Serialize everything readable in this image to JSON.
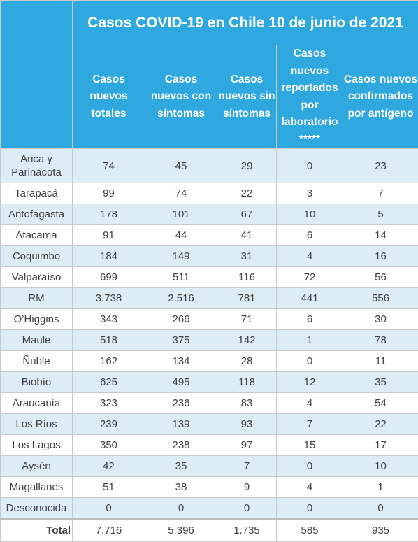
{
  "title": "Casos COVID-19 en Chile 10 de junio de 2021",
  "headers": [
    "Casos nuevos totales",
    "Casos nuevos con síntomas",
    "Casos nuevos sin síntomas",
    "Casos nuevos reportados por laboratorio *****",
    "Casos nuevos confirmados por antígeno"
  ],
  "rows": [
    {
      "region": "Arica y Parinacota",
      "values": [
        "74",
        "45",
        "29",
        "0",
        "23"
      ]
    },
    {
      "region": "Tarapacá",
      "values": [
        "99",
        "74",
        "22",
        "3",
        "7"
      ]
    },
    {
      "region": "Antofagasta",
      "values": [
        "178",
        "101",
        "67",
        "10",
        "5"
      ]
    },
    {
      "region": "Atacama",
      "values": [
        "91",
        "44",
        "41",
        "6",
        "14"
      ]
    },
    {
      "region": "Coquimbo",
      "values": [
        "184",
        "149",
        "31",
        "4",
        "16"
      ]
    },
    {
      "region": "Valparaíso",
      "values": [
        "699",
        "511",
        "116",
        "72",
        "56"
      ]
    },
    {
      "region": "RM",
      "values": [
        "3.738",
        "2.516",
        "781",
        "441",
        "556"
      ]
    },
    {
      "region": "O’Higgins",
      "values": [
        "343",
        "266",
        "71",
        "6",
        "30"
      ]
    },
    {
      "region": "Maule",
      "values": [
        "518",
        "375",
        "142",
        "1",
        "78"
      ]
    },
    {
      "region": "Ñuble",
      "values": [
        "162",
        "134",
        "28",
        "0",
        "11"
      ]
    },
    {
      "region": "Biobío",
      "values": [
        "625",
        "495",
        "118",
        "12",
        "35"
      ]
    },
    {
      "region": "Araucanía",
      "values": [
        "323",
        "236",
        "83",
        "4",
        "54"
      ]
    },
    {
      "region": "Los Ríos",
      "values": [
        "239",
        "139",
        "93",
        "7",
        "22"
      ]
    },
    {
      "region": "Los Lagos",
      "values": [
        "350",
        "238",
        "97",
        "15",
        "17"
      ]
    },
    {
      "region": "Aysén",
      "values": [
        "42",
        "35",
        "7",
        "0",
        "10"
      ]
    },
    {
      "region": "Magallanes",
      "values": [
        "51",
        "38",
        "9",
        "4",
        "1"
      ]
    },
    {
      "region": "Desconocida",
      "values": [
        "0",
        "0",
        "0",
        "0",
        "0"
      ]
    }
  ],
  "total": {
    "label": "Total",
    "values": [
      "7.716",
      "5.396",
      "1.735",
      "585",
      "935"
    ]
  }
}
